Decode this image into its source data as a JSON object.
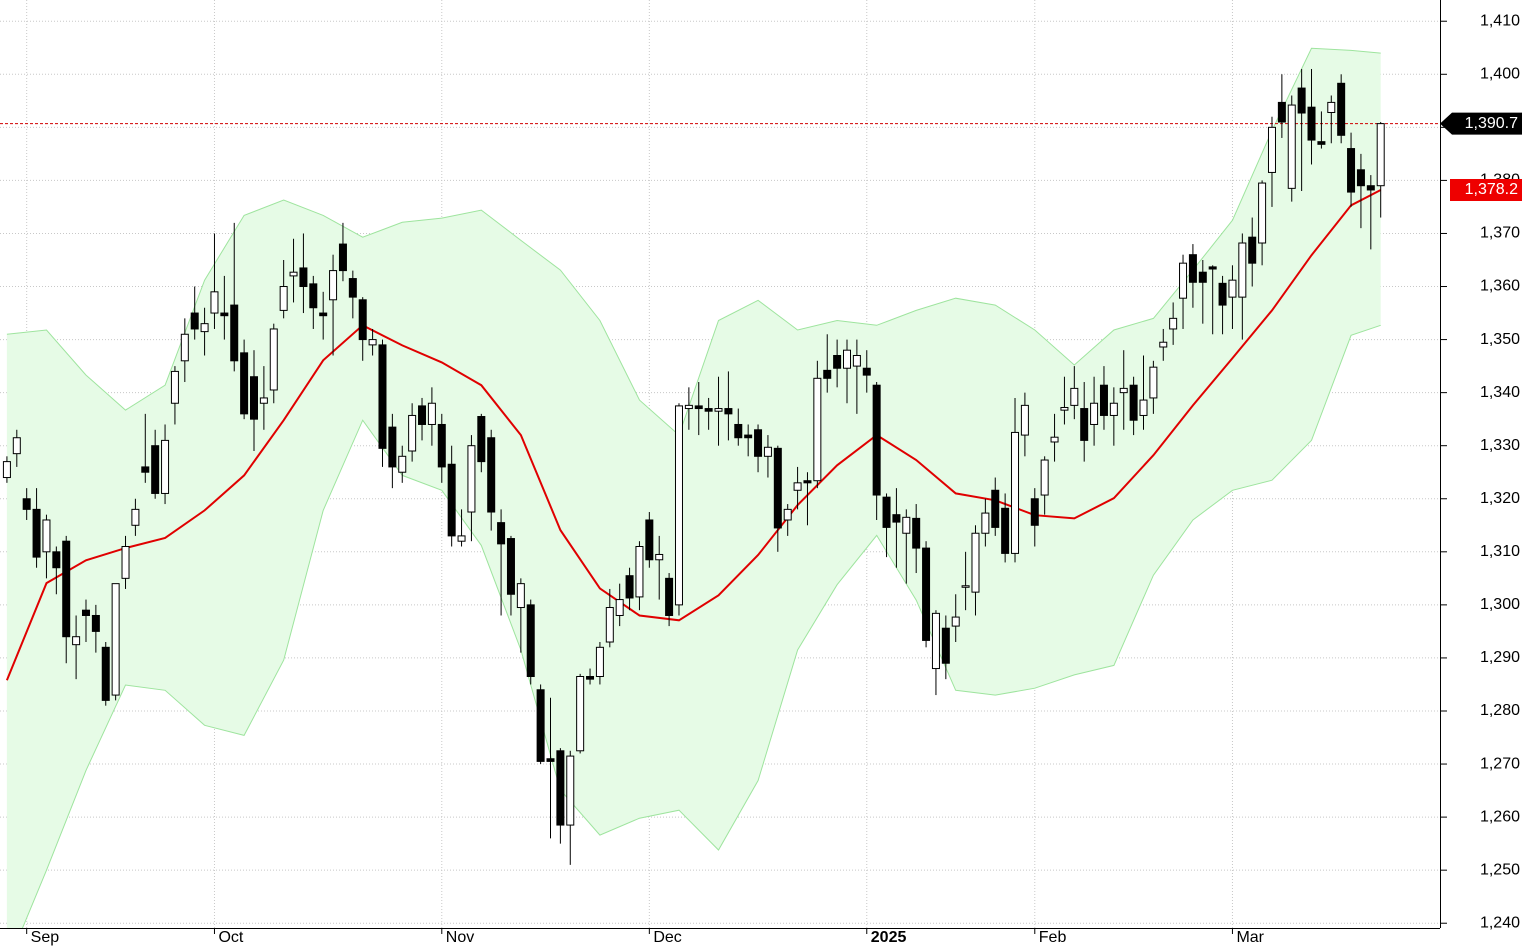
{
  "chart_data": {
    "type": "candlestick",
    "xlim": [
      -0.7,
      145
    ],
    "xticks": [
      {
        "value": 2,
        "label": "Sep"
      },
      {
        "value": 21,
        "label": "Oct"
      },
      {
        "value": 44,
        "label": "Nov"
      },
      {
        "value": 65,
        "label": "Dec"
      },
      {
        "value": 87,
        "label": "2025"
      },
      {
        "value": 104,
        "label": "Feb"
      },
      {
        "value": 124,
        "label": "Mar"
      }
    ],
    "ylim": [
      1239.1,
      1414
    ],
    "yticks": [
      {
        "value": 1240,
        "label": "1,240"
      },
      {
        "value": 1250,
        "label": "1,250"
      },
      {
        "value": 1260,
        "label": "1,260"
      },
      {
        "value": 1270,
        "label": "1,270"
      },
      {
        "value": 1280,
        "label": "1,280"
      },
      {
        "value": 1290,
        "label": "1,290"
      },
      {
        "value": 1300,
        "label": "1,300"
      },
      {
        "value": 1310,
        "label": "1,310"
      },
      {
        "value": 1320,
        "label": "1,320"
      },
      {
        "value": 1330,
        "label": "1,330"
      },
      {
        "value": 1340,
        "label": "1,340"
      },
      {
        "value": 1350,
        "label": "1,350"
      },
      {
        "value": 1360,
        "label": "1,360"
      },
      {
        "value": 1370,
        "label": "1,370"
      },
      {
        "value": 1380,
        "label": "1,380"
      },
      {
        "value": 1390,
        "label": "1,390"
      },
      {
        "value": 1400,
        "label": "1,400"
      },
      {
        "value": 1410,
        "label": "1,410"
      }
    ],
    "grid": true,
    "up_color": "#ffffff",
    "down_color": "#000000",
    "open": [
      1324,
      1328.5,
      1320,
      1318,
      1310,
      1310,
      1312,
      1292.5,
      1299,
      1298,
      1292,
      1283,
      1305,
      1315,
      1326,
      1330,
      1321,
      1338,
      1346,
      1355,
      1351.5,
      1355,
      1355,
      1356.5,
      1347.5,
      1343,
      1338,
      1340.5,
      1355.5,
      1362,
      1363.5,
      1360.5,
      1355,
      1357.5,
      1368,
      1361.5,
      1357.5,
      1349,
      1349,
      1333.5,
      1325,
      1329,
      1337.5,
      1334,
      1334,
      1326.5,
      1312,
      1317.5,
      1335.5,
      1331.5,
      1315.5,
      1312.5,
      1299.5,
      1300,
      1284,
      1271,
      1272.5,
      1258.5,
      1272.5,
      1286.5,
      1286.5,
      1293,
      1298,
      1305.5,
      1301.5,
      1316,
      1308.5,
      1305,
      1300,
      1337,
      1337.5,
      1337,
      1336.5,
      1337,
      1334,
      1332,
      1333,
      1328,
      1329.5,
      1316,
      1321.6,
      1323.4,
      1323.4,
      1344.2,
      1347,
      1344.6,
      1345,
      1344.6,
      1341.4,
      1320.3,
      1317,
      1313.5,
      1316.3,
      1310.7,
      1288,
      1295.6,
      1296,
      1303.5,
      1302.4,
      1313.5,
      1321.6,
      1318.2,
      1309.7,
      1332,
      1320,
      1320.7,
      1330.7,
      1336.7,
      1337.6,
      1337,
      1334,
      1341.4,
      1335.7,
      1340,
      1341.4,
      1335.7,
      1339,
      1348.6,
      1352,
      1357.8,
      1366,
      1362.7,
      1363.7,
      1360.6,
      1358,
      1358,
      1369.3,
      1368.2,
      1381.5,
      1394.7,
      1378.5,
      1397.4,
      1393.8,
      1387.3,
      1392.8,
      1398.3,
      1386,
      1382,
      1379,
      1379
    ],
    "high": [
      1328,
      1333,
      1322,
      1322,
      1317,
      1311,
      1313,
      1298,
      1301,
      1300,
      1293,
      1304,
      1313,
      1320,
      1336,
      1333,
      1334,
      1345,
      1354,
      1360,
      1356,
      1370,
      1362,
      1372,
      1350,
      1348,
      1345,
      1353,
      1365,
      1369,
      1370,
      1362,
      1359,
      1366,
      1372,
      1363,
      1358,
      1352,
      1350,
      1336,
      1330,
      1338,
      1339,
      1341,
      1336,
      1330,
      1318,
      1332,
      1336,
      1333,
      1318,
      1313,
      1305,
      1301,
      1285,
      1282.5,
      1273,
      1272.5,
      1287,
      1288,
      1293,
      1303,
      1304,
      1307,
      1312,
      1317.5,
      1313,
      1306,
      1338,
      1341,
      1342,
      1339,
      1343,
      1344,
      1337,
      1334,
      1334,
      1332,
      1330,
      1319,
      1326,
      1325,
      1346,
      1351,
      1350,
      1350,
      1350,
      1348,
      1342,
      1321,
      1322,
      1318,
      1319,
      1312,
      1299,
      1298,
      1302,
      1310,
      1315,
      1320,
      1324,
      1321,
      1339,
      1340,
      1322,
      1328,
      1336,
      1343,
      1345,
      1342,
      1343,
      1345,
      1341,
      1348,
      1343,
      1347,
      1346,
      1352,
      1357,
      1366,
      1368,
      1365,
      1364,
      1362,
      1364,
      1370,
      1373,
      1380,
      1392,
      1400,
      1396,
      1401,
      1401,
      1393,
      1396,
      1400,
      1389,
      1385,
      1381,
      1391
    ],
    "low": [
      1323,
      1326,
      1316,
      1307,
      1305,
      1302,
      1289,
      1286,
      1293,
      1291,
      1281,
      1282,
      1303,
      1313,
      1323,
      1320,
      1319,
      1334,
      1342,
      1350,
      1347,
      1352,
      1350,
      1344,
      1335,
      1329,
      1333,
      1338,
      1354,
      1357,
      1355,
      1352,
      1350,
      1347,
      1361,
      1354,
      1346,
      1347,
      1326,
      1322,
      1323,
      1327,
      1331,
      1330,
      1323,
      1311,
      1311,
      1312,
      1325,
      1314,
      1298,
      1298,
      1291,
      1285,
      1270,
      1256,
      1255,
      1251,
      1272,
      1285,
      1285,
      1292,
      1296,
      1299,
      1299,
      1307,
      1301,
      1296,
      1298,
      1333,
      1332,
      1333,
      1330,
      1331,
      1330,
      1328,
      1325,
      1324,
      1310,
      1313,
      1318,
      1315,
      1322,
      1340,
      1341,
      1338,
      1336,
      1340,
      1316,
      1309,
      1307,
      1304,
      1306,
      1292,
      1283,
      1286,
      1293,
      1299,
      1298,
      1311,
      1313,
      1308,
      1308,
      1328,
      1311,
      1317,
      1327,
      1334,
      1335,
      1327,
      1330,
      1333,
      1330,
      1333,
      1332,
      1333,
      1336,
      1346,
      1349,
      1352,
      1356,
      1353,
      1351,
      1351,
      1352,
      1350,
      1360,
      1364,
      1375,
      1388,
      1376,
      1378,
      1383,
      1386,
      1387,
      1387,
      1375,
      1371,
      1367,
      1373
    ],
    "close": [
      1327,
      1331.5,
      1318,
      1309,
      1316,
      1307,
      1294,
      1294,
      1298,
      1295,
      1282,
      1304,
      1311,
      1318,
      1325,
      1321,
      1331,
      1344,
      1351,
      1352,
      1353,
      1359,
      1354.5,
      1346,
      1336,
      1335,
      1339,
      1352,
      1360,
      1362.7,
      1360,
      1356,
      1354.5,
      1363,
      1363,
      1358,
      1350,
      1350,
      1329.5,
      1326,
      1328,
      1335.7,
      1334,
      1338,
      1326,
      1313,
      1313,
      1330,
      1327,
      1317.5,
      1311.5,
      1302,
      1304,
      1286.5,
      1270.5,
      1270.5,
      1258.5,
      1271.5,
      1286.5,
      1286,
      1292,
      1299.5,
      1301,
      1301.3,
      1311,
      1308.5,
      1309.5,
      1298,
      1337.5,
      1337.6,
      1337,
      1336.5,
      1337,
      1336,
      1331.5,
      1331.5,
      1328,
      1329.7,
      1314.5,
      1318,
      1323,
      1323,
      1342.7,
      1342.7,
      1344.6,
      1348,
      1347,
      1343.3,
      1320.7,
      1314.6,
      1315.6,
      1316.5,
      1310.7,
      1293.3,
      1298.4,
      1289,
      1297.7,
      1303.6,
      1313.5,
      1317.3,
      1314.6,
      1309.7,
      1332.5,
      1337.6,
      1315,
      1327.3,
      1331.6,
      1337.2,
      1340.8,
      1331,
      1338,
      1335.7,
      1338,
      1340.8,
      1334.8,
      1338.6,
      1344.8,
      1349.5,
      1354,
      1364.4,
      1360.8,
      1360.8,
      1363.3,
      1356.5,
      1361.2,
      1368.2,
      1364.4,
      1379.5,
      1390,
      1391,
      1394.2,
      1392.7,
      1387.6,
      1386.8,
      1394.7,
      1388.5,
      1377.8,
      1379,
      1378.2,
      1390.7
    ],
    "band_x": [
      0,
      4,
      8,
      12,
      16,
      20,
      24,
      28,
      32,
      36,
      40,
      44,
      48,
      52,
      56,
      60,
      64,
      68,
      72,
      76,
      80,
      84,
      88,
      92,
      96,
      100,
      104,
      108,
      112,
      116,
      120,
      124,
      128,
      132,
      136,
      139
    ],
    "band_fill": "#e6fbe6",
    "upper": {
      "color": "#9ee49e",
      "values": [
        1351,
        1351.8,
        1343.3,
        1336.7,
        1341.4,
        1361.2,
        1373.4,
        1376.3,
        1373.4,
        1369.3,
        1372.1,
        1372.9,
        1374.4,
        1368.7,
        1363.1,
        1353.6,
        1338.6,
        1332,
        1353.6,
        1357.4,
        1351.8,
        1353.6,
        1352.7,
        1355.5,
        1357.8,
        1356.5,
        1351.8,
        1345.2,
        1351.8,
        1354,
        1363.1,
        1372.5,
        1389.4,
        1404.9,
        1404.5,
        1404
      ]
    },
    "lower": {
      "color": "#9ee49e",
      "values": [
        1232,
        1250,
        1268.8,
        1284.9,
        1283.9,
        1277.3,
        1275.4,
        1289.6,
        1317.8,
        1334.8,
        1324.4,
        1321.6,
        1311.2,
        1291.5,
        1265.1,
        1256.6,
        1259.8,
        1261.3,
        1253.8,
        1266.9,
        1291.5,
        1303.8,
        1313.1,
        1300.9,
        1283.9,
        1283,
        1284.3,
        1286.8,
        1288.6,
        1305.6,
        1316,
        1321.6,
        1323.5,
        1331,
        1350.8,
        1352.7
      ]
    },
    "middle": {
      "color": "#e00000",
      "values": [
        1285.8,
        1304.1,
        1308.4,
        1310.7,
        1312.6,
        1317.8,
        1324.4,
        1334.8,
        1346.1,
        1352.7,
        1348.9,
        1345.7,
        1341.4,
        1332,
        1314.1,
        1303.1,
        1298,
        1297.1,
        1301.8,
        1309.4,
        1318.8,
        1326.3,
        1332,
        1327.3,
        1321,
        1319.7,
        1316.9,
        1316.3,
        1320.1,
        1328.2,
        1337.6,
        1346.5,
        1355.5,
        1365.9,
        1375.3,
        1378.2
      ]
    },
    "last_price": {
      "value": 1390.7,
      "label": "1,390.7",
      "color": "#000000"
    },
    "middle_last": {
      "value": 1378.2,
      "label": "1,378.2",
      "color": "#ee0000"
    }
  }
}
